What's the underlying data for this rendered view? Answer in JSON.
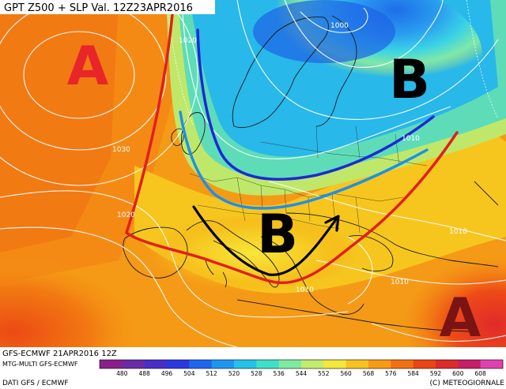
{
  "header": {
    "title": "GPT Z500 + SLP Val. 12Z23APR2016"
  },
  "pressure_centers": [
    {
      "letter": "A",
      "color": "#e8262a"
    },
    {
      "letter": "B",
      "color": "#000000"
    },
    {
      "letter": "B",
      "color": "#000000"
    },
    {
      "letter": "A",
      "color": "#7a1414"
    }
  ],
  "isobar_labels": [
    "1020",
    "1000",
    "1030",
    "1010",
    "1020",
    "1010",
    "1010",
    "1010",
    "1010"
  ],
  "footer": {
    "model_line": "GFS-ECMWF  21APR2016  12Z",
    "product_line": "MTG-MULTI GFS-ECMWF",
    "data_line": "DATI GFS / ECMWF",
    "copyright": "(C) METEOGIORNALE"
  },
  "colorbar": {
    "ticks": [
      "480",
      "488",
      "496",
      "504",
      "512",
      "520",
      "528",
      "536",
      "544",
      "552",
      "560",
      "568",
      "576",
      "584",
      "592",
      "600",
      "608"
    ],
    "colors": [
      "#8a1e8c",
      "#6a2aa8",
      "#4a2ec8",
      "#2a3ae0",
      "#1e66ee",
      "#1e96f0",
      "#22c2ea",
      "#3ee0c8",
      "#7eeaa0",
      "#c2ec6a",
      "#f4e83a",
      "#f8c21e",
      "#f89a14",
      "#f27010",
      "#ec4414",
      "#e02a2a",
      "#c81e6a",
      "#e040b0"
    ]
  }
}
